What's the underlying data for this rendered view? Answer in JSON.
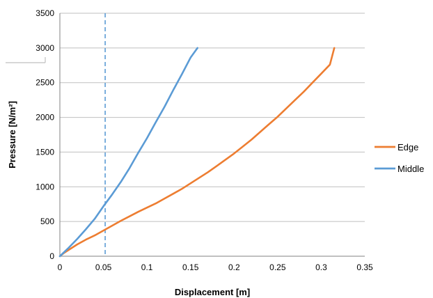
{
  "chart_data": {
    "type": "line",
    "xlabel": "Displacement [m]",
    "ylabel": "Pressure [N/m²]",
    "xlim": [
      0,
      0.35
    ],
    "ylim": [
      0,
      3500
    ],
    "x_ticks": [
      "0",
      "0.05",
      "0.1",
      "0.15",
      "0.2",
      "0.25",
      "0.3",
      "0.35"
    ],
    "y_ticks": [
      "0",
      "500",
      "1000",
      "1500",
      "2000",
      "2500",
      "3000",
      "3500"
    ],
    "grid": "horizontal",
    "legend_position": "right",
    "reference_line": {
      "x": 0.052,
      "style": "dashed",
      "color": "#5b9bd5"
    },
    "series": [
      {
        "name": "Edge",
        "color": "#ed7d31",
        "x": [
          0,
          0.005,
          0.01,
          0.02,
          0.03,
          0.04,
          0.05,
          0.06,
          0.07,
          0.08,
          0.09,
          0.1,
          0.11,
          0.12,
          0.13,
          0.14,
          0.15,
          0.16,
          0.17,
          0.18,
          0.19,
          0.2,
          0.21,
          0.22,
          0.23,
          0.24,
          0.25,
          0.26,
          0.27,
          0.28,
          0.29,
          0.3,
          0.31,
          0.315
        ],
        "y": [
          0,
          50,
          90,
          170,
          240,
          300,
          370,
          440,
          510,
          575,
          640,
          700,
          760,
          830,
          900,
          970,
          1050,
          1130,
          1210,
          1300,
          1390,
          1480,
          1580,
          1680,
          1790,
          1900,
          2010,
          2130,
          2250,
          2370,
          2500,
          2630,
          2760,
          3000
        ]
      },
      {
        "name": "Middle",
        "color": "#5b9bd5",
        "x": [
          0,
          0.005,
          0.01,
          0.02,
          0.03,
          0.04,
          0.05,
          0.06,
          0.07,
          0.08,
          0.09,
          0.1,
          0.11,
          0.12,
          0.13,
          0.14,
          0.15,
          0.158
        ],
        "y": [
          0,
          60,
          120,
          250,
          390,
          540,
          720,
          890,
          1070,
          1270,
          1490,
          1700,
          1930,
          2150,
          2390,
          2620,
          2860,
          3000
        ]
      }
    ]
  }
}
